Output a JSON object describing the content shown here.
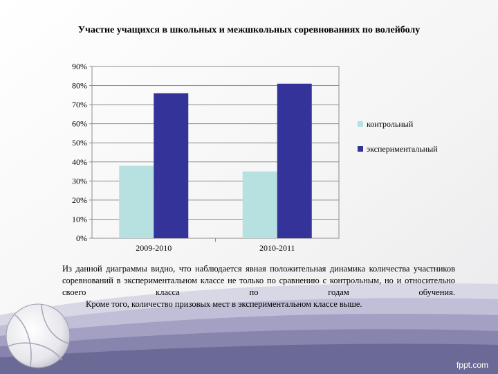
{
  "title": "Участие учащихся в школьных и межшкольных соревнованиях по волейболу",
  "chart_data": {
    "type": "bar",
    "categories": [
      "2009-2010",
      "2010-2011"
    ],
    "series": [
      {
        "name": "контрольный",
        "values": [
          38,
          35
        ],
        "color": "#b7e0e0"
      },
      {
        "name": "экспериментальный",
        "values": [
          76,
          81
        ],
        "color": "#33339a"
      }
    ],
    "ylim": [
      0,
      90
    ],
    "yticks": [
      0,
      10,
      20,
      30,
      40,
      50,
      60,
      70,
      80,
      90
    ],
    "ytick_labels": [
      "0%",
      "10%",
      "20%",
      "30%",
      "40%",
      "50%",
      "60%",
      "70%",
      "80%",
      "90%"
    ],
    "grid": true,
    "legend_position": "right"
  },
  "caption": {
    "paragraph1": "Из данной диаграммы видно, что наблюдается явная положительная динамика количества участников соревнований в экспериментальном классе не только по сравнению с контрольным, но и относительно своего класса по годам обучения.",
    "paragraph2": "Кроме того, количество призовых мест в экспериментальном классе выше."
  },
  "watermark": "fppt.com",
  "decor": {
    "ball_icon": "volleyball-icon",
    "wave_color": "#6b6a96"
  }
}
